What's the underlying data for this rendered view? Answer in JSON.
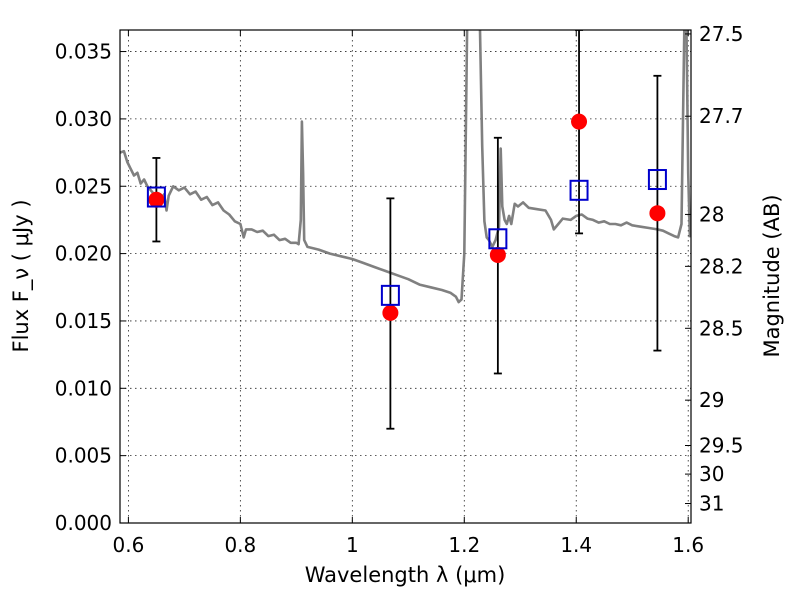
{
  "chart_data": {
    "type": "scatter",
    "xlabel": "Wavelength  λ (μm)",
    "ylabel": "Flux  F_ν  ( μJy )",
    "y2label": "Magnitude (AB)",
    "xlim": [
      0.585,
      1.605
    ],
    "ylim": [
      0.0,
      0.0366
    ],
    "grid": true,
    "x_ticks": [
      {
        "value": 0.6,
        "label": "0.6"
      },
      {
        "value": 0.8,
        "label": "0.8"
      },
      {
        "value": 1.0,
        "label": "1"
      },
      {
        "value": 1.2,
        "label": "1.2"
      },
      {
        "value": 1.4,
        "label": "1.4"
      },
      {
        "value": 1.6,
        "label": "1.6"
      }
    ],
    "y_ticks": [
      {
        "value": 0.0,
        "label": "0.000"
      },
      {
        "value": 0.005,
        "label": "0.005"
      },
      {
        "value": 0.01,
        "label": "0.010"
      },
      {
        "value": 0.015,
        "label": "0.015"
      },
      {
        "value": 0.02,
        "label": "0.020"
      },
      {
        "value": 0.025,
        "label": "0.025"
      },
      {
        "value": 0.03,
        "label": "0.030"
      },
      {
        "value": 0.035,
        "label": "0.035"
      }
    ],
    "y2_ticks": [
      {
        "value": 27.5,
        "label": "27.5"
      },
      {
        "value": 27.7,
        "label": "27.7"
      },
      {
        "value": 28.0,
        "label": "28"
      },
      {
        "value": 28.2,
        "label": "28.2"
      },
      {
        "value": 28.5,
        "label": "28.5"
      },
      {
        "value": 29.0,
        "label": "29"
      },
      {
        "value": 29.5,
        "label": "29.5"
      },
      {
        "value": 30.0,
        "label": "30"
      },
      {
        "value": 31.0,
        "label": "31"
      }
    ],
    "model_spectrum": {
      "color": "#808080",
      "points": [
        [
          0.585,
          0.0275
        ],
        [
          0.592,
          0.0276
        ],
        [
          0.598,
          0.0268
        ],
        [
          0.604,
          0.0263
        ],
        [
          0.61,
          0.0258
        ],
        [
          0.616,
          0.026
        ],
        [
          0.622,
          0.0252
        ],
        [
          0.628,
          0.0255
        ],
        [
          0.634,
          0.025
        ],
        [
          0.64,
          0.0247
        ],
        [
          0.646,
          0.0244
        ],
        [
          0.652,
          0.0243
        ],
        [
          0.658,
          0.024
        ],
        [
          0.664,
          0.0244
        ],
        [
          0.668,
          0.0232
        ],
        [
          0.672,
          0.0243
        ],
        [
          0.68,
          0.025
        ],
        [
          0.69,
          0.0247
        ],
        [
          0.7,
          0.0249
        ],
        [
          0.71,
          0.0244
        ],
        [
          0.72,
          0.0246
        ],
        [
          0.73,
          0.024
        ],
        [
          0.74,
          0.0242
        ],
        [
          0.75,
          0.0236
        ],
        [
          0.76,
          0.0238
        ],
        [
          0.77,
          0.0232
        ],
        [
          0.78,
          0.0229
        ],
        [
          0.79,
          0.0224
        ],
        [
          0.8,
          0.0222
        ],
        [
          0.806,
          0.0212
        ],
        [
          0.81,
          0.0218
        ],
        [
          0.82,
          0.0218
        ],
        [
          0.83,
          0.0216
        ],
        [
          0.84,
          0.0217
        ],
        [
          0.85,
          0.0213
        ],
        [
          0.86,
          0.0214
        ],
        [
          0.87,
          0.021
        ],
        [
          0.88,
          0.0211
        ],
        [
          0.89,
          0.0208
        ],
        [
          0.9,
          0.0208
        ],
        [
          0.904,
          0.0207
        ],
        [
          0.908,
          0.0225
        ],
        [
          0.91,
          0.0298
        ],
        [
          0.912,
          0.026
        ],
        [
          0.914,
          0.021
        ],
        [
          0.92,
          0.0205
        ],
        [
          0.94,
          0.0203
        ],
        [
          0.96,
          0.02
        ],
        [
          0.98,
          0.0198
        ],
        [
          1.0,
          0.0196
        ],
        [
          1.02,
          0.0193
        ],
        [
          1.04,
          0.019
        ],
        [
          1.06,
          0.0187
        ],
        [
          1.08,
          0.0184
        ],
        [
          1.1,
          0.0181
        ],
        [
          1.12,
          0.0177
        ],
        [
          1.14,
          0.0175
        ],
        [
          1.16,
          0.0173
        ],
        [
          1.175,
          0.0171
        ],
        [
          1.185,
          0.0168
        ],
        [
          1.19,
          0.0164
        ],
        [
          1.195,
          0.0166
        ],
        [
          1.2,
          0.02
        ],
        [
          1.205,
          0.0366
        ]
      ],
      "points_2": [
        [
          1.228,
          0.0366
        ],
        [
          1.232,
          0.028
        ],
        [
          1.236,
          0.0224
        ],
        [
          1.24,
          0.0212
        ],
        [
          1.244,
          0.021
        ],
        [
          1.25,
          0.0205
        ],
        [
          1.256,
          0.021
        ],
        [
          1.262,
          0.022
        ],
        [
          1.265,
          0.0278
        ],
        [
          1.268,
          0.0235
        ],
        [
          1.272,
          0.0225
        ],
        [
          1.276,
          0.0222
        ],
        [
          1.28,
          0.0228
        ],
        [
          1.284,
          0.0222
        ],
        [
          1.29,
          0.0237
        ],
        [
          1.296,
          0.0235
        ],
        [
          1.305,
          0.0238
        ],
        [
          1.315,
          0.0234
        ],
        [
          1.33,
          0.0233
        ],
        [
          1.345,
          0.0232
        ],
        [
          1.355,
          0.0225
        ],
        [
          1.36,
          0.0218
        ],
        [
          1.368,
          0.0222
        ],
        [
          1.376,
          0.0226
        ],
        [
          1.39,
          0.0225
        ],
        [
          1.4,
          0.0228
        ],
        [
          1.41,
          0.0229
        ],
        [
          1.42,
          0.0226
        ],
        [
          1.43,
          0.0225
        ],
        [
          1.44,
          0.0223
        ],
        [
          1.45,
          0.0224
        ],
        [
          1.46,
          0.0222
        ],
        [
          1.47,
          0.0222
        ],
        [
          1.48,
          0.0221
        ],
        [
          1.49,
          0.0223
        ],
        [
          1.5,
          0.0221
        ],
        [
          1.515,
          0.022
        ],
        [
          1.53,
          0.0219
        ],
        [
          1.545,
          0.0218
        ],
        [
          1.555,
          0.0217
        ],
        [
          1.565,
          0.0215
        ],
        [
          1.575,
          0.0213
        ],
        [
          1.582,
          0.0212
        ],
        [
          1.588,
          0.0222
        ],
        [
          1.593,
          0.0366
        ]
      ],
      "points_3": [
        [
          1.597,
          0.0366
        ],
        [
          1.6,
          0.026
        ],
        [
          1.603,
          0.0212
        ]
      ]
    },
    "observed": {
      "color": "#ff0000",
      "points": [
        {
          "x": 0.65,
          "y": 0.024,
          "yerr_low": 0.0031,
          "yerr_high": 0.0031
        },
        {
          "x": 1.068,
          "y": 0.0156,
          "yerr_low": 0.0086,
          "yerr_high": 0.0085
        },
        {
          "x": 1.26,
          "y": 0.0199,
          "yerr_low": 0.0088,
          "yerr_high": 0.0087
        },
        {
          "x": 1.405,
          "y": 0.0298,
          "yerr_low": 0.0083,
          "yerr_high": 0.0068
        },
        {
          "x": 1.545,
          "y": 0.023,
          "yerr_low": 0.0102,
          "yerr_high": 0.0102
        }
      ]
    },
    "model_photometry": {
      "color": "#0000cc",
      "points": [
        {
          "x": 0.65,
          "y": 0.0242
        },
        {
          "x": 1.068,
          "y": 0.0169
        },
        {
          "x": 1.26,
          "y": 0.0211
        },
        {
          "x": 1.405,
          "y": 0.0247
        },
        {
          "x": 1.545,
          "y": 0.0255
        }
      ]
    }
  }
}
